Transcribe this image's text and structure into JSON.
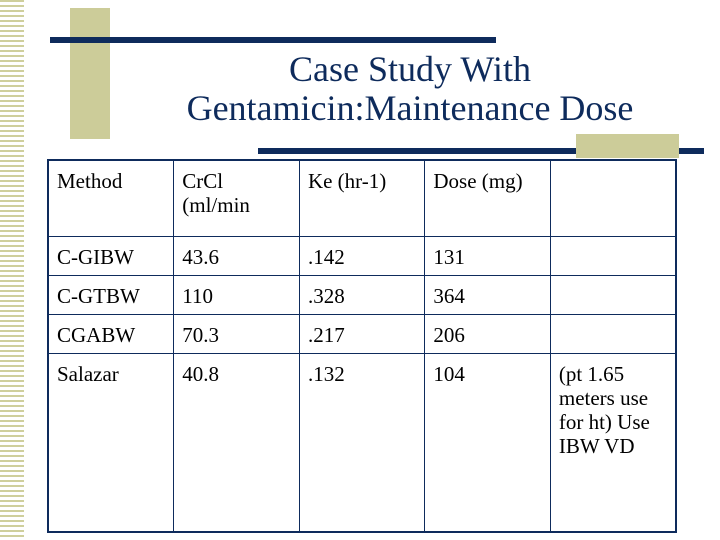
{
  "slide": {
    "title_line1": "Case Study With",
    "title_line2": "Gentamicin:Maintenance Dose"
  },
  "table": {
    "columns": [
      "Method",
      "CrCl (ml/min",
      "Ke (hr-1)",
      "Dose (mg)",
      ""
    ],
    "rows": [
      [
        "C-GIBW",
        "43.6",
        ".142",
        "131",
        ""
      ],
      [
        "C-GTBW",
        "110",
        ".328",
        "364",
        ""
      ],
      [
        "CGABW",
        "70.3",
        ".217",
        "206",
        ""
      ],
      [
        "Salazar",
        "40.8",
        ".132",
        "104",
        "(pt 1.65 meters use for ht) Use IBW VD"
      ]
    ]
  },
  "colors": {
    "navy": "#0e2b5c",
    "khaki": "#cccc99"
  }
}
